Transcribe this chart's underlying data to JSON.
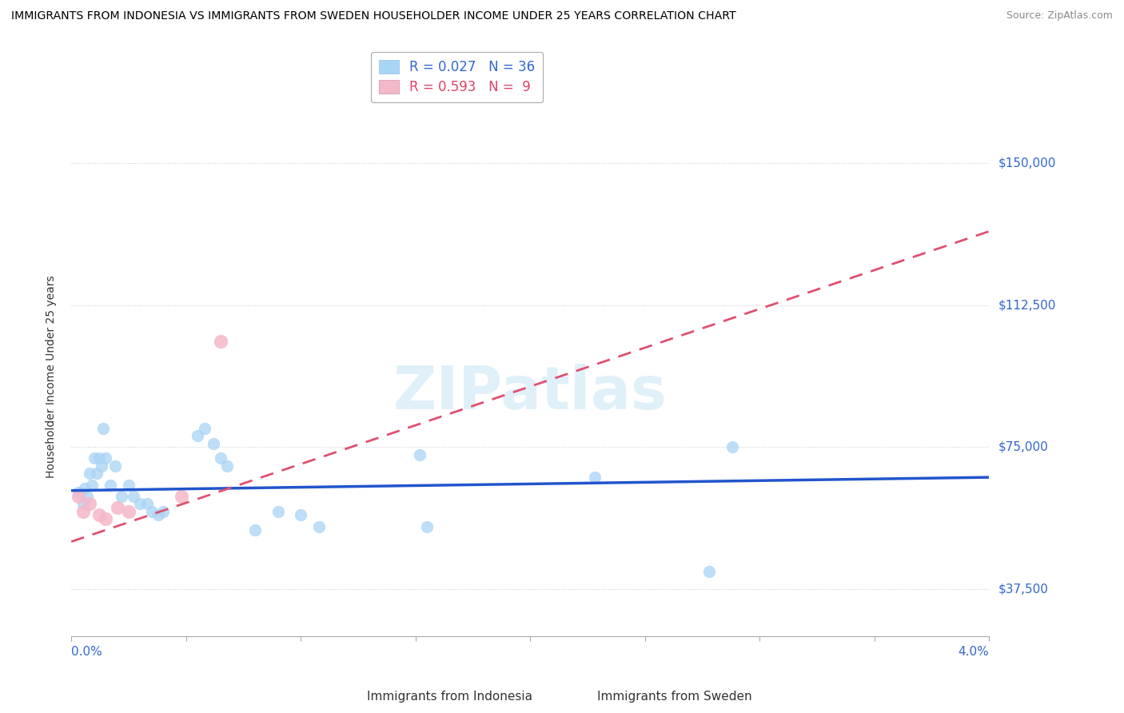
{
  "title": "IMMIGRANTS FROM INDONESIA VS IMMIGRANTS FROM SWEDEN HOUSEHOLDER INCOME UNDER 25 YEARS CORRELATION CHART",
  "source": "Source: ZipAtlas.com",
  "ylabel": "Householder Income Under 25 years",
  "xlim": [
    0.0,
    4.0
  ],
  "ylim": [
    25000,
    162000
  ],
  "legend_indonesia": "R = 0.027   N = 36",
  "legend_sweden": "R = 0.593   N =  9",
  "indonesia_color": "#a8d4f5",
  "sweden_color": "#f5b8c8",
  "indonesia_line_color": "#2255cc",
  "sweden_line_color": "#e05070",
  "watermark": "ZIPatlas",
  "ytick_positions": [
    37500,
    75000,
    112500,
    150000
  ],
  "ytick_labels": [
    "$37,500",
    "$75,000",
    "$112,500",
    "$150,000"
  ],
  "indonesia_points": [
    [
      0.03,
      63000
    ],
    [
      0.05,
      60000
    ],
    [
      0.06,
      64000
    ],
    [
      0.07,
      62000
    ],
    [
      0.08,
      68000
    ],
    [
      0.09,
      65000
    ],
    [
      0.1,
      72000
    ],
    [
      0.11,
      68000
    ],
    [
      0.12,
      72000
    ],
    [
      0.13,
      70000
    ],
    [
      0.14,
      80000
    ],
    [
      0.15,
      72000
    ],
    [
      0.17,
      65000
    ],
    [
      0.19,
      70000
    ],
    [
      0.22,
      62000
    ],
    [
      0.25,
      65000
    ],
    [
      0.27,
      62000
    ],
    [
      0.3,
      60000
    ],
    [
      0.33,
      60000
    ],
    [
      0.35,
      58000
    ],
    [
      0.38,
      57000
    ],
    [
      0.4,
      58000
    ],
    [
      0.55,
      78000
    ],
    [
      0.58,
      80000
    ],
    [
      0.62,
      76000
    ],
    [
      0.65,
      72000
    ],
    [
      0.68,
      70000
    ],
    [
      0.8,
      53000
    ],
    [
      0.9,
      58000
    ],
    [
      1.0,
      57000
    ],
    [
      1.08,
      54000
    ],
    [
      1.52,
      73000
    ],
    [
      1.55,
      54000
    ],
    [
      2.28,
      67000
    ],
    [
      2.78,
      42000
    ],
    [
      2.88,
      75000
    ]
  ],
  "sweden_points": [
    [
      0.03,
      62000
    ],
    [
      0.05,
      58000
    ],
    [
      0.08,
      60000
    ],
    [
      0.12,
      57000
    ],
    [
      0.15,
      56000
    ],
    [
      0.2,
      59000
    ],
    [
      0.25,
      58000
    ],
    [
      0.48,
      62000
    ],
    [
      0.65,
      103000
    ]
  ],
  "indonesia_line_x": [
    0.0,
    4.0
  ],
  "indonesia_line_y": [
    63500,
    67000
  ],
  "sweden_line_x": [
    0.0,
    4.0
  ],
  "sweden_line_y": [
    50000,
    132000
  ]
}
